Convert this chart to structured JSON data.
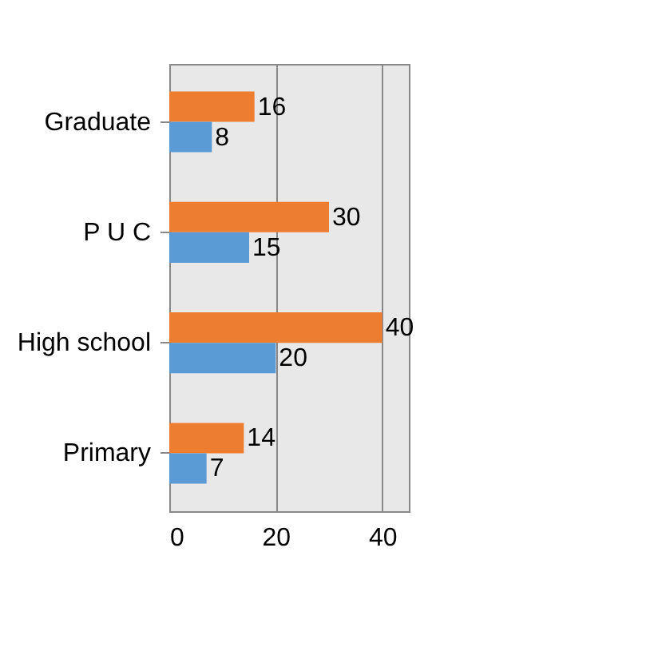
{
  "chart_data": {
    "type": "bar",
    "orientation": "horizontal",
    "categories": [
      "Graduate",
      "P U C",
      "High school",
      "Primary"
    ],
    "series": [
      {
        "color": "#ed7d31",
        "values": [
          16,
          30,
          40,
          14
        ]
      },
      {
        "color": "#5b9bd5",
        "values": [
          8,
          15,
          20,
          7
        ]
      }
    ],
    "xlim": [
      0,
      45
    ],
    "xticks": [
      0,
      20,
      40
    ],
    "grid": "x",
    "data_labels": true,
    "legend": false
  }
}
